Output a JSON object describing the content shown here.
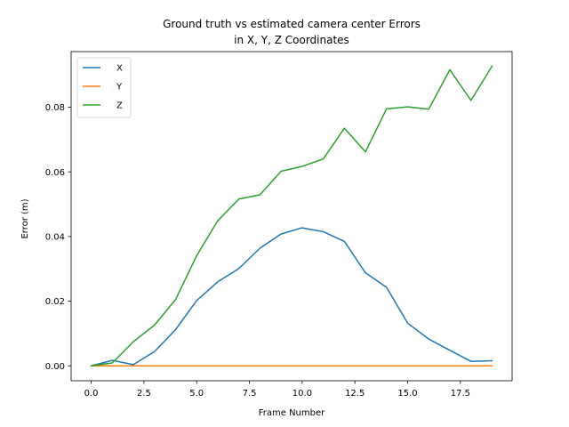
{
  "chart_data": {
    "type": "line",
    "title": [
      "Ground truth vs estimated camera center Errors",
      "in X, Y, Z Coordinates"
    ],
    "xlabel": "Frame Number",
    "ylabel": "Error (m)",
    "xlim": [
      -0.95,
      19.95
    ],
    "ylim": [
      -0.0046,
      0.0972
    ],
    "xticks": [
      0.0,
      2.5,
      5.0,
      7.5,
      10.0,
      12.5,
      15.0,
      17.5
    ],
    "xtick_labels": [
      "0.0",
      "2.5",
      "5.0",
      "7.5",
      "10.0",
      "12.5",
      "15.0",
      "17.5"
    ],
    "yticks": [
      0.0,
      0.02,
      0.04,
      0.06,
      0.08
    ],
    "ytick_labels": [
      "0.00",
      "0.02",
      "0.04",
      "0.06",
      "0.08"
    ],
    "legend_position": "upper-left",
    "grid": false,
    "x": [
      0,
      1,
      2,
      3,
      4,
      5,
      6,
      7,
      8,
      9,
      10,
      11,
      12,
      13,
      14,
      15,
      16,
      17,
      18,
      19
    ],
    "series": [
      {
        "name": "X",
        "color": "#1f77b4",
        "values": [
          0.0,
          0.0017,
          0.0004,
          0.0044,
          0.0112,
          0.0202,
          0.026,
          0.0301,
          0.0364,
          0.0408,
          0.0427,
          0.0415,
          0.0385,
          0.0288,
          0.0243,
          0.0132,
          0.0083,
          0.0048,
          0.0014,
          0.0016
        ]
      },
      {
        "name": "Y",
        "color": "#ff7f0e",
        "values": [
          0.0,
          0.0,
          0.0,
          0.0,
          0.0,
          0.0,
          0.0,
          0.0,
          0.0,
          0.0,
          0.0,
          0.0,
          0.0,
          0.0,
          0.0,
          0.0,
          0.0,
          0.0,
          0.0,
          0.0
        ]
      },
      {
        "name": "Z",
        "color": "#2ca02c",
        "values": [
          0.0,
          0.0009,
          0.0075,
          0.0126,
          0.0205,
          0.0341,
          0.0449,
          0.0516,
          0.0529,
          0.0602,
          0.0617,
          0.064,
          0.0735,
          0.0662,
          0.0795,
          0.0801,
          0.0794,
          0.0916,
          0.0821,
          0.0927
        ]
      }
    ]
  }
}
